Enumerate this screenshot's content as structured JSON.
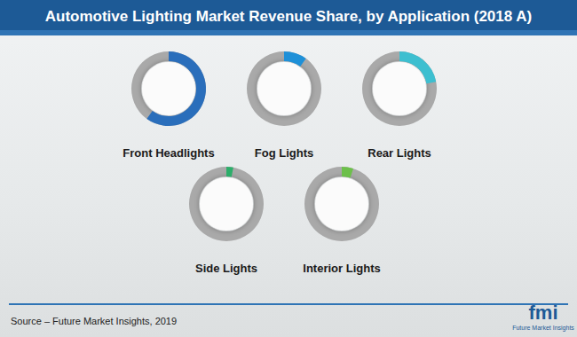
{
  "chart_data": {
    "type": "donut",
    "title": "Automotive Lighting Market Revenue Share, by Application (2018 A)",
    "categories": [
      "Front Headlights",
      "Fog Lights",
      "Rear Lights",
      "Side Lights",
      "Interior Lights"
    ],
    "values": [
      60,
      10,
      22,
      3,
      5
    ],
    "colors": [
      "#2a6ebb",
      "#1e90d8",
      "#3dbfd0",
      "#2cae6a",
      "#6cc04a"
    ],
    "ylim": [
      0,
      100
    ],
    "tick_labels": false,
    "data_labels": false,
    "source": "Source – Future Market Insights, 2019",
    "logo_text": "fmi",
    "logo_caption": "Future Market Insights"
  }
}
